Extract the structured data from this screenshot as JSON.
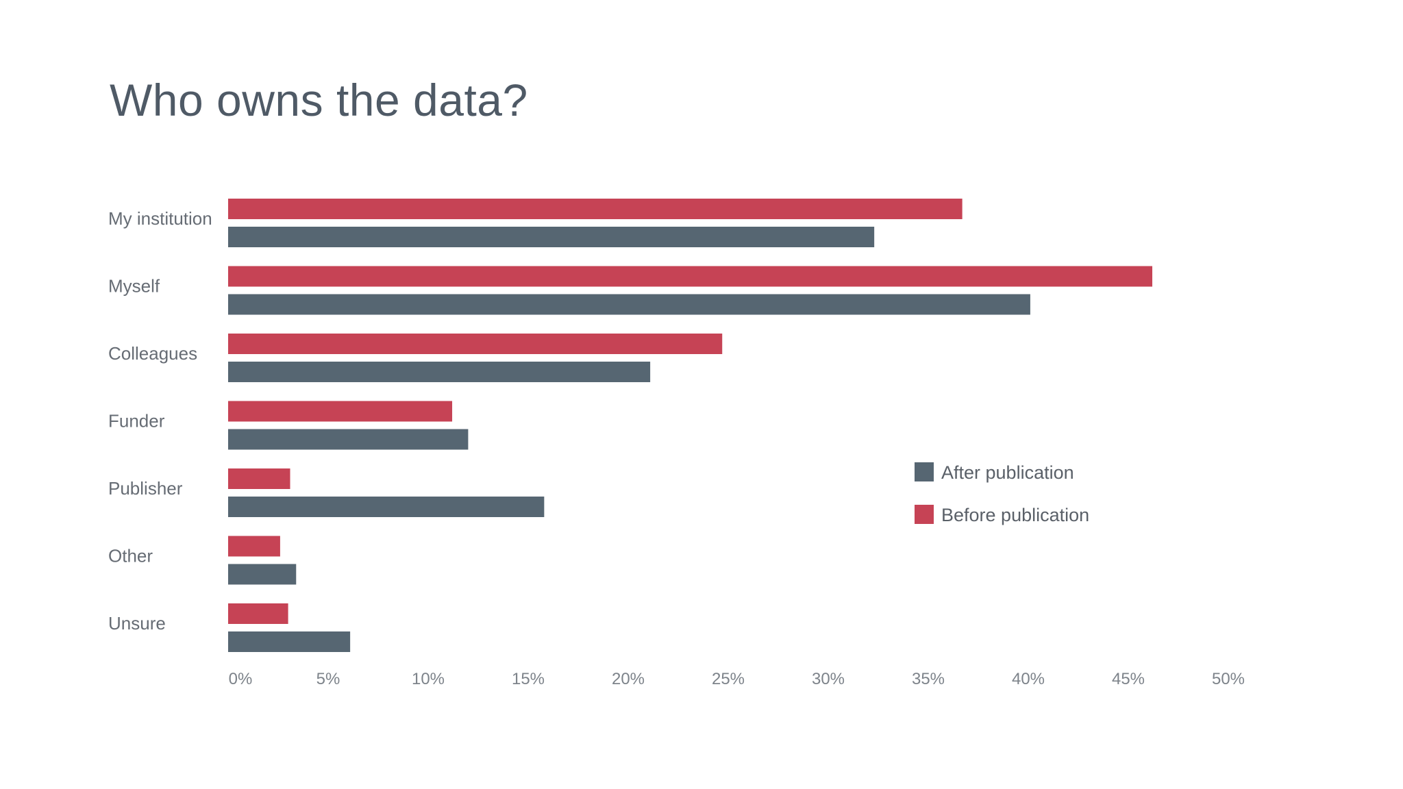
{
  "slide": {
    "title": "Who owns the data?"
  },
  "chart_data": {
    "type": "bar",
    "orientation": "horizontal",
    "title": "",
    "xlabel": "",
    "ylabel": "",
    "categories": [
      "My institution",
      "Myself",
      "Colleagues",
      "Funder",
      "Publisher",
      "Other",
      "Unsure"
    ],
    "series": [
      {
        "name": "Before publication",
        "color": "#c64355",
        "values": [
          36.7,
          46.2,
          24.7,
          11.2,
          3.1,
          2.6,
          3.0
        ]
      },
      {
        "name": "After publication",
        "color": "#566672",
        "values": [
          32.3,
          40.1,
          21.1,
          12.0,
          15.8,
          3.4,
          6.1
        ]
      }
    ],
    "xlim": [
      0,
      50
    ],
    "xticks": [
      0,
      5,
      10,
      15,
      20,
      25,
      30,
      35,
      40,
      45,
      50
    ],
    "tick_labels": [
      "0%",
      "5%",
      "10%",
      "15%",
      "20%",
      "25%",
      "30%",
      "35%",
      "40%",
      "45%",
      "50%"
    ],
    "legend": {
      "position": "right",
      "entries": [
        {
          "label": "After publication",
          "color": "#566672"
        },
        {
          "label": "Before publication",
          "color": "#c64355"
        }
      ]
    },
    "grid": false
  }
}
